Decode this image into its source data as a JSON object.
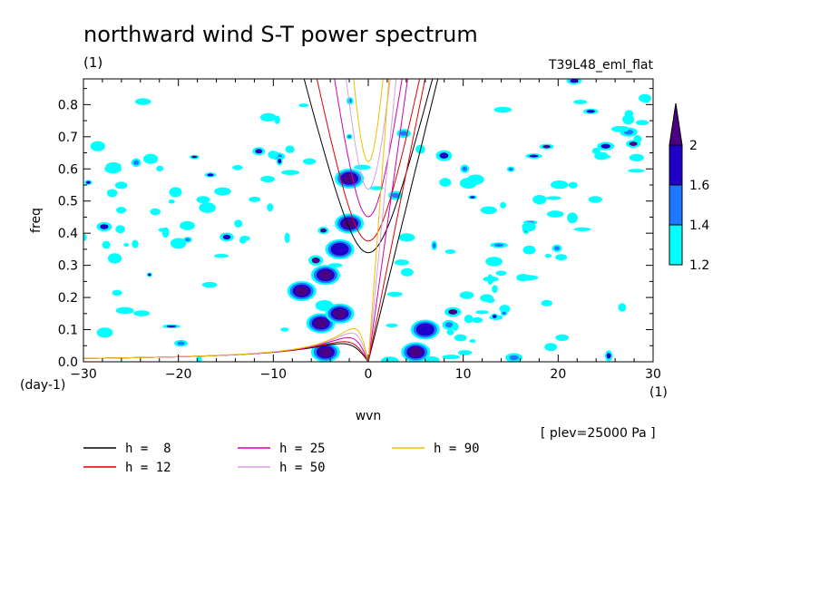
{
  "chart_data": {
    "type": "heatmap",
    "title": "northward wind S-T power spectrum",
    "units_note": "(1)",
    "experiment": "T39L48_eml_flat",
    "xlabel": "wvn",
    "ylabel": "freq",
    "x_units": "(1)",
    "y_units": "(day-1)",
    "level_note": "[ plev=25000 Pa ]",
    "xlim": [
      -30,
      30
    ],
    "ylim": [
      0,
      0.88
    ],
    "x_ticks": [
      -30,
      -20,
      -10,
      0,
      10,
      20,
      30
    ],
    "y_ticks": [
      0.0,
      0.1,
      0.2,
      0.3,
      0.4,
      0.5,
      0.6,
      0.7,
      0.8
    ],
    "colorbar": {
      "levels": [
        1.2,
        1.4,
        1.6,
        2
      ],
      "colors": [
        "#00ffff",
        "#1e78ff",
        "#2000c8",
        "#4b0082"
      ],
      "labels": [
        "1.2",
        "1.4",
        "1.6",
        "2"
      ]
    },
    "dispersion_curves": [
      {
        "label": "h =  8",
        "h": 8,
        "color": "#000000"
      },
      {
        "label": "h = 12",
        "h": 12,
        "color": "#e00000"
      },
      {
        "label": "h = 25",
        "h": 25,
        "color": "#d000b0"
      },
      {
        "label": "h = 50",
        "h": 50,
        "color": "#d8a0e0"
      },
      {
        "label": "h = 90",
        "h": 90,
        "color": "#f0c000"
      }
    ],
    "spectral_peaks": [
      {
        "wvn": -4.5,
        "freq": 0.03,
        "level": 2
      },
      {
        "wvn": -5,
        "freq": 0.12,
        "level": 2
      },
      {
        "wvn": -7,
        "freq": 0.22,
        "level": 2
      },
      {
        "wvn": -4.5,
        "freq": 0.27,
        "level": 2
      },
      {
        "wvn": -3,
        "freq": 0.15,
        "level": 2
      },
      {
        "wvn": -2,
        "freq": 0.43,
        "level": 2
      },
      {
        "wvn": -2,
        "freq": 0.57,
        "level": 2
      },
      {
        "wvn": -3,
        "freq": 0.35,
        "level": 1.6
      },
      {
        "wvn": 5,
        "freq": 0.03,
        "level": 2
      },
      {
        "wvn": 6,
        "freq": 0.1,
        "level": 1.6
      }
    ]
  }
}
